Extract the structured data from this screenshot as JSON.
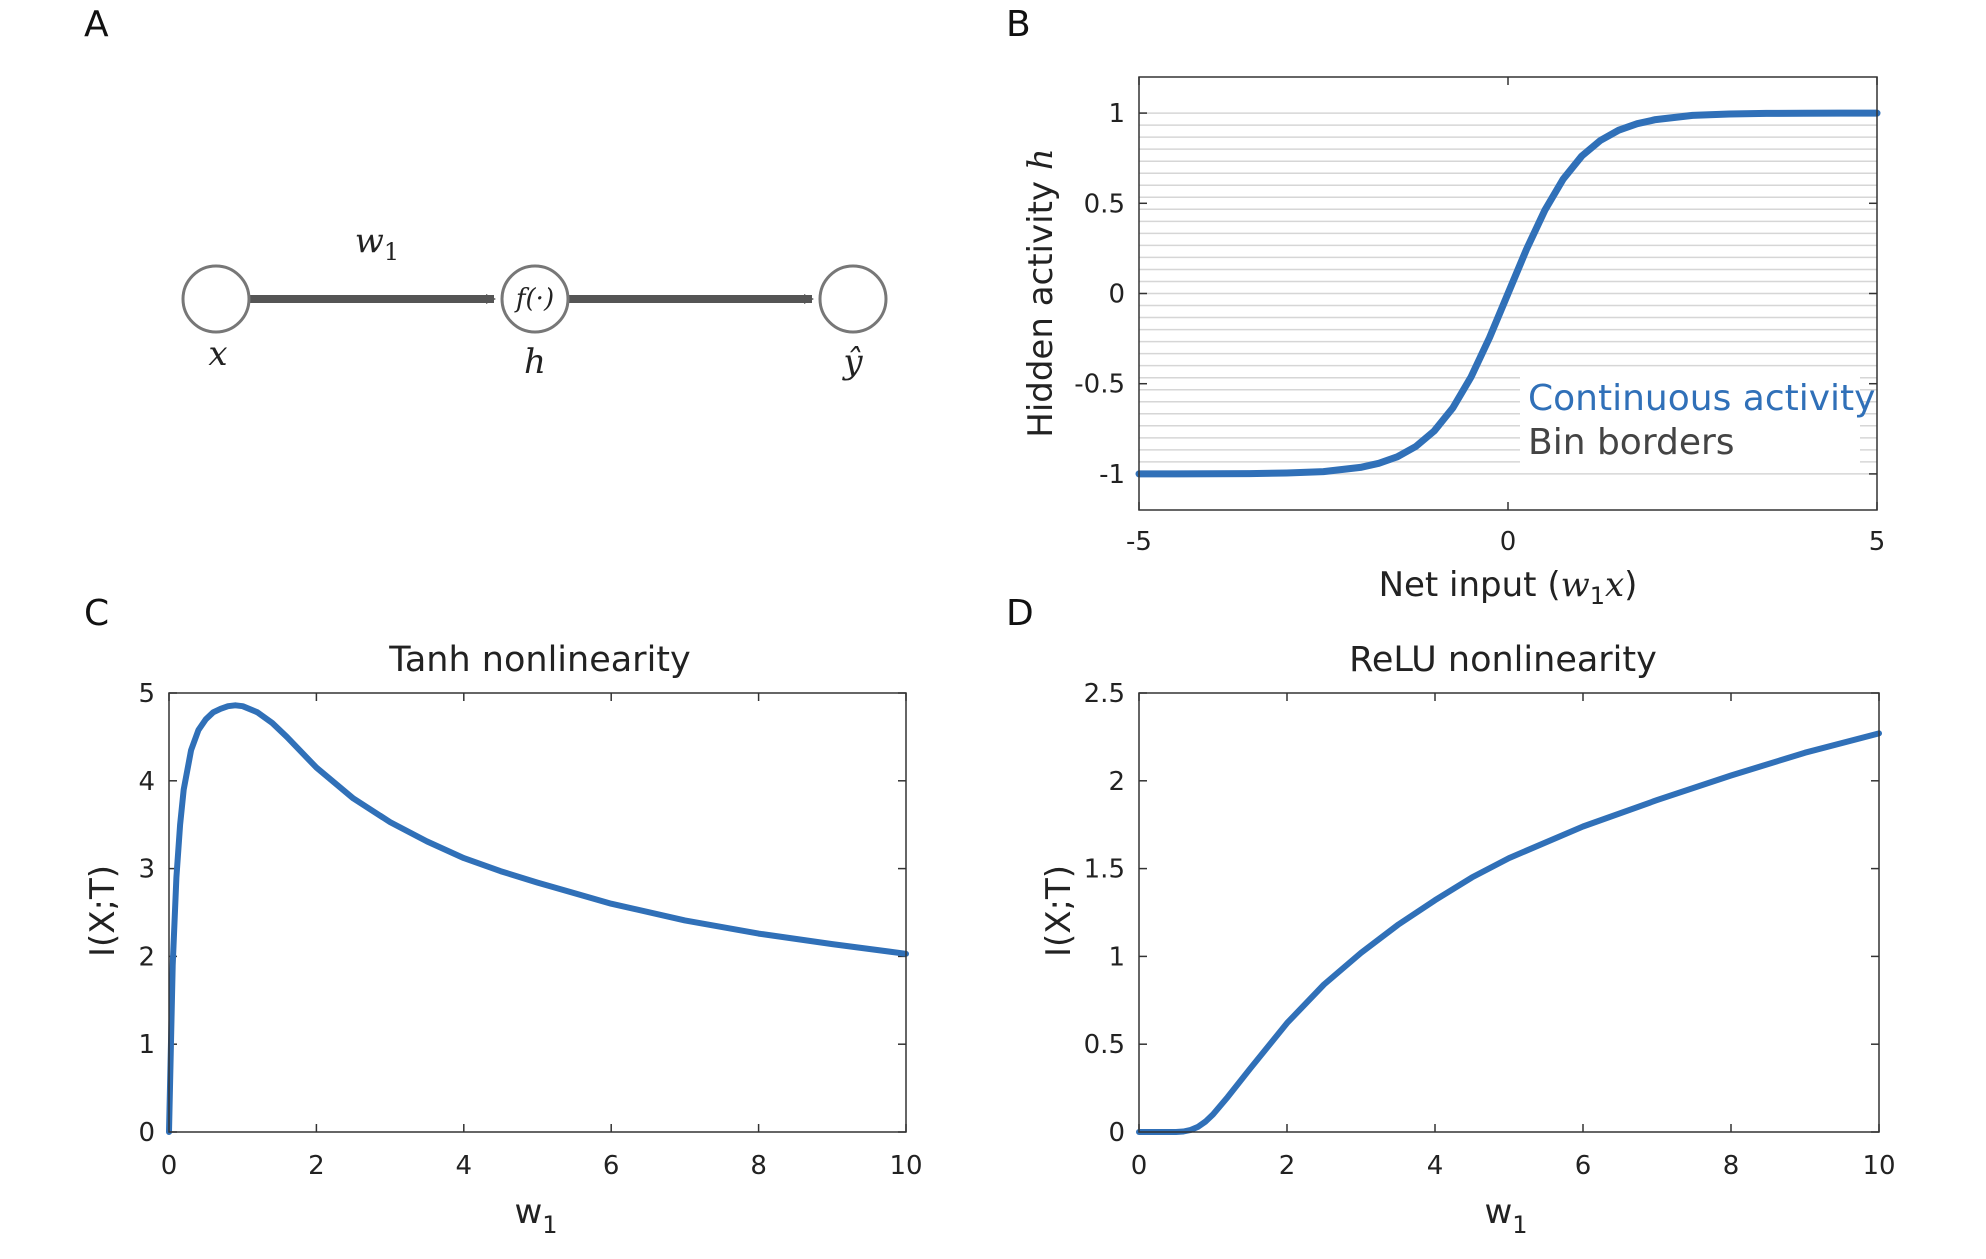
{
  "panels": {
    "a": {
      "letter": "A",
      "edge_weight_label": "w",
      "edge_weight_sub": "1",
      "nodes": [
        {
          "label": "x",
          "inner": ""
        },
        {
          "label": "h",
          "inner": "f(·)"
        },
        {
          "label": "ŷ",
          "inner": ""
        }
      ]
    },
    "b": {
      "letter": "B"
    },
    "c": {
      "letter": "C"
    },
    "d": {
      "letter": "D"
    }
  },
  "chart_data": [
    {
      "id": "b",
      "type": "line",
      "title": "",
      "xlabel_main": "Net input (",
      "xlabel_math": "w",
      "xlabel_sub": "1",
      "xlabel_math2": "x",
      "xlabel_close": ")",
      "ylabel_main": "Hidden activity ",
      "ylabel_math": "h",
      "xlim": [
        -5,
        5
      ],
      "ylim": [
        -1.2,
        1.2
      ],
      "xticks": [
        -5,
        0,
        5
      ],
      "xtick_labels": [
        "-5",
        "0",
        "5"
      ],
      "yticks": [
        -1,
        -0.5,
        0,
        0.5,
        1
      ],
      "ytick_labels": [
        "-1",
        "-0.5",
        "0",
        "0.5",
        "1"
      ],
      "bin_count": 30,
      "legend": [
        {
          "name": "Continuous activity",
          "color": "#3070b8"
        },
        {
          "name": "Bin borders",
          "color": "#444444"
        }
      ],
      "series": [
        {
          "name": "Continuous activity",
          "color": "#3070b8",
          "x": [
            -5,
            -4.5,
            -4,
            -3.5,
            -3,
            -2.5,
            -2,
            -1.75,
            -1.5,
            -1.25,
            -1,
            -0.75,
            -0.5,
            -0.25,
            0,
            0.25,
            0.5,
            0.75,
            1,
            1.25,
            1.5,
            1.75,
            2,
            2.5,
            3,
            3.5,
            4,
            4.5,
            5
          ],
          "y": [
            -1,
            -0.9998,
            -0.9993,
            -0.9982,
            -0.995,
            -0.987,
            -0.964,
            -0.941,
            -0.905,
            -0.848,
            -0.762,
            -0.635,
            -0.462,
            -0.245,
            0,
            0.245,
            0.462,
            0.635,
            0.762,
            0.848,
            0.905,
            0.941,
            0.964,
            0.987,
            0.995,
            0.9982,
            0.9993,
            0.9998,
            1
          ]
        },
        {
          "name": "Bin borders",
          "color": "#d8d8d8",
          "type": "hlines"
        }
      ]
    },
    {
      "id": "c",
      "type": "line",
      "title": "Tanh nonlinearity",
      "xlabel": "w",
      "xlabel_sub": "1",
      "ylabel": "I(X;T)",
      "xlim": [
        0,
        10
      ],
      "ylim": [
        0,
        5
      ],
      "xticks": [
        0,
        2,
        4,
        6,
        8,
        10
      ],
      "xtick_labels": [
        "0",
        "2",
        "4",
        "6",
        "8",
        "10"
      ],
      "yticks": [
        0,
        1,
        2,
        3,
        4,
        5
      ],
      "ytick_labels": [
        "0",
        "1",
        "2",
        "3",
        "4",
        "5"
      ],
      "series": [
        {
          "color": "#3070b8",
          "x": [
            0,
            0.05,
            0.1,
            0.15,
            0.2,
            0.3,
            0.4,
            0.5,
            0.6,
            0.7,
            0.8,
            0.9,
            1.0,
            1.2,
            1.4,
            1.6,
            2.0,
            2.5,
            3.0,
            3.5,
            4.0,
            4.5,
            5.0,
            6.0,
            7.0,
            8.0,
            9.0,
            10.0
          ],
          "y": [
            0,
            1.9,
            2.9,
            3.5,
            3.9,
            4.35,
            4.58,
            4.7,
            4.78,
            4.82,
            4.85,
            4.86,
            4.85,
            4.78,
            4.66,
            4.5,
            4.15,
            3.8,
            3.53,
            3.31,
            3.12,
            2.97,
            2.84,
            2.6,
            2.41,
            2.26,
            2.14,
            2.03
          ]
        }
      ]
    },
    {
      "id": "d",
      "type": "line",
      "title": "ReLU nonlinearity",
      "xlabel": "w",
      "xlabel_sub": "1",
      "ylabel": "I(X;T)",
      "xlim": [
        0,
        10
      ],
      "ylim": [
        0,
        2.5
      ],
      "xticks": [
        0,
        2,
        4,
        6,
        8,
        10
      ],
      "xtick_labels": [
        "0",
        "2",
        "4",
        "6",
        "8",
        "10"
      ],
      "yticks": [
        0,
        0.5,
        1,
        1.5,
        2,
        2.5
      ],
      "ytick_labels": [
        "0",
        "0.5",
        "1",
        "1.5",
        "2",
        "2.5"
      ],
      "series": [
        {
          "color": "#3070b8",
          "x": [
            0,
            0.3,
            0.5,
            0.6,
            0.7,
            0.8,
            0.9,
            1.0,
            1.2,
            1.5,
            2.0,
            2.5,
            3.0,
            3.5,
            4.0,
            4.5,
            5.0,
            6.0,
            7.0,
            8.0,
            9.0,
            10.0
          ],
          "y": [
            0,
            0,
            0,
            0.003,
            0.012,
            0.03,
            0.06,
            0.1,
            0.2,
            0.36,
            0.62,
            0.84,
            1.02,
            1.18,
            1.32,
            1.45,
            1.56,
            1.74,
            1.89,
            2.03,
            2.16,
            2.27
          ]
        }
      ]
    }
  ]
}
